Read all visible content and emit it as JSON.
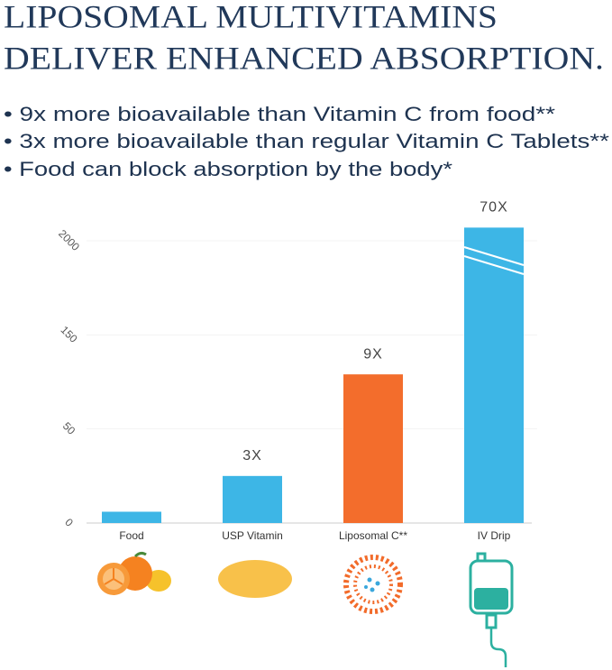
{
  "chart_data": {
    "type": "bar",
    "title": [
      "LIPOSOMAL MULTIVITAMINS",
      "DELIVER ENHANCED ABSORPTION."
    ],
    "bullets": [
      "• 9x more bioavailable than Vitamin C from food**",
      "• 3x more bioavailable than regular Vitamin C Tablets**",
      "• Food can block absorption by the body*"
    ],
    "categories": [
      "Food",
      "USP Vitamin",
      "Liposomal C**",
      "IV Drip"
    ],
    "values": [
      0.12,
      0.5,
      1.58,
      3.14
    ],
    "colors": [
      "#3db6e6",
      "#3db6e6",
      "#f36d2c",
      "#3db6e6"
    ],
    "bar_labels": [
      null,
      "3X",
      "9X",
      "70X"
    ],
    "ylim": [
      0,
      3.2
    ],
    "yticks": [
      {
        "value": 0,
        "label": "0"
      },
      {
        "value": 1,
        "label": "50"
      },
      {
        "value": 2,
        "label": "150"
      },
      {
        "value": 3,
        "label": "2000"
      }
    ],
    "grid": true
  }
}
